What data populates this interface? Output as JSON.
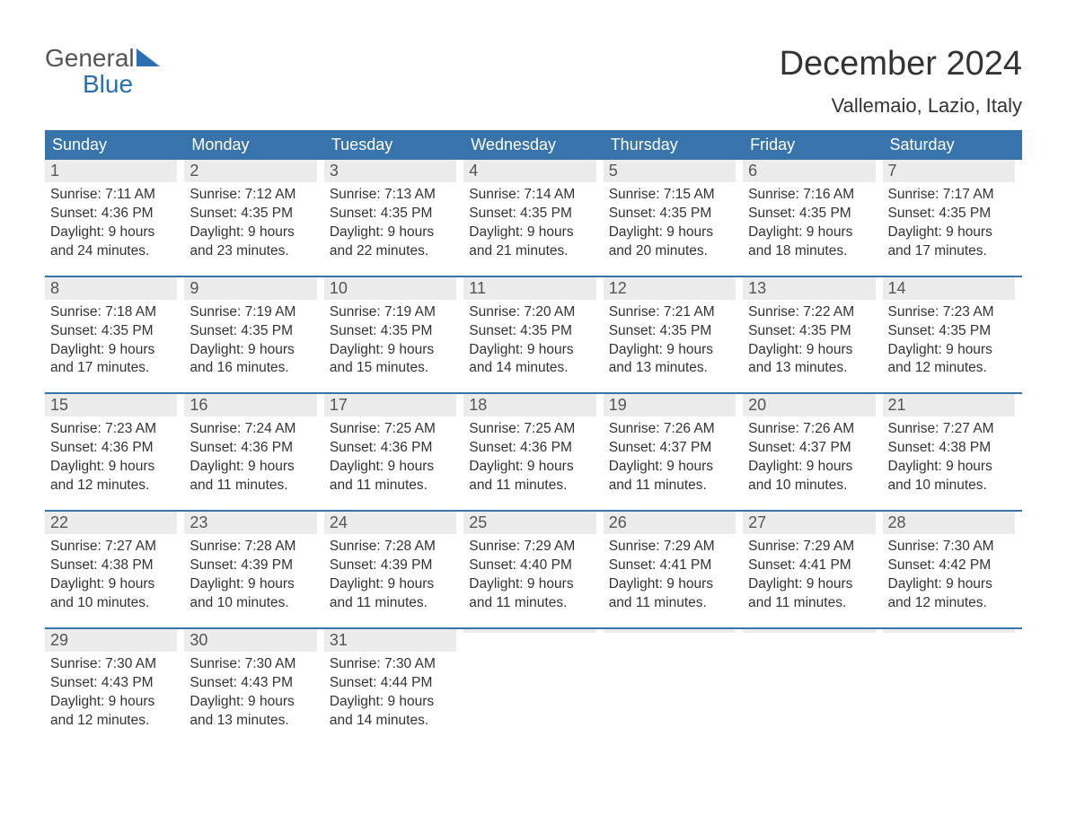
{
  "logo": {
    "top": "General",
    "bottom": "Blue"
  },
  "header": {
    "title": "December 2024",
    "subtitle": "Vallemaio, Lazio, Italy"
  },
  "colors": {
    "header_bg": "#3874ac",
    "header_text": "#ffffff",
    "day_num_bg": "#ececec",
    "border": "#3874ac",
    "logo_accent": "#2b6fb0",
    "logo_gray": "#555555"
  },
  "weekdays": [
    "Sunday",
    "Monday",
    "Tuesday",
    "Wednesday",
    "Thursday",
    "Friday",
    "Saturday"
  ],
  "weeks": [
    [
      {
        "num": "1",
        "sunrise": "Sunrise: 7:11 AM",
        "sunset": "Sunset: 4:36 PM",
        "d1": "Daylight: 9 hours",
        "d2": "and 24 minutes."
      },
      {
        "num": "2",
        "sunrise": "Sunrise: 7:12 AM",
        "sunset": "Sunset: 4:35 PM",
        "d1": "Daylight: 9 hours",
        "d2": "and 23 minutes."
      },
      {
        "num": "3",
        "sunrise": "Sunrise: 7:13 AM",
        "sunset": "Sunset: 4:35 PM",
        "d1": "Daylight: 9 hours",
        "d2": "and 22 minutes."
      },
      {
        "num": "4",
        "sunrise": "Sunrise: 7:14 AM",
        "sunset": "Sunset: 4:35 PM",
        "d1": "Daylight: 9 hours",
        "d2": "and 21 minutes."
      },
      {
        "num": "5",
        "sunrise": "Sunrise: 7:15 AM",
        "sunset": "Sunset: 4:35 PM",
        "d1": "Daylight: 9 hours",
        "d2": "and 20 minutes."
      },
      {
        "num": "6",
        "sunrise": "Sunrise: 7:16 AM",
        "sunset": "Sunset: 4:35 PM",
        "d1": "Daylight: 9 hours",
        "d2": "and 18 minutes."
      },
      {
        "num": "7",
        "sunrise": "Sunrise: 7:17 AM",
        "sunset": "Sunset: 4:35 PM",
        "d1": "Daylight: 9 hours",
        "d2": "and 17 minutes."
      }
    ],
    [
      {
        "num": "8",
        "sunrise": "Sunrise: 7:18 AM",
        "sunset": "Sunset: 4:35 PM",
        "d1": "Daylight: 9 hours",
        "d2": "and 17 minutes."
      },
      {
        "num": "9",
        "sunrise": "Sunrise: 7:19 AM",
        "sunset": "Sunset: 4:35 PM",
        "d1": "Daylight: 9 hours",
        "d2": "and 16 minutes."
      },
      {
        "num": "10",
        "sunrise": "Sunrise: 7:19 AM",
        "sunset": "Sunset: 4:35 PM",
        "d1": "Daylight: 9 hours",
        "d2": "and 15 minutes."
      },
      {
        "num": "11",
        "sunrise": "Sunrise: 7:20 AM",
        "sunset": "Sunset: 4:35 PM",
        "d1": "Daylight: 9 hours",
        "d2": "and 14 minutes."
      },
      {
        "num": "12",
        "sunrise": "Sunrise: 7:21 AM",
        "sunset": "Sunset: 4:35 PM",
        "d1": "Daylight: 9 hours",
        "d2": "and 13 minutes."
      },
      {
        "num": "13",
        "sunrise": "Sunrise: 7:22 AM",
        "sunset": "Sunset: 4:35 PM",
        "d1": "Daylight: 9 hours",
        "d2": "and 13 minutes."
      },
      {
        "num": "14",
        "sunrise": "Sunrise: 7:23 AM",
        "sunset": "Sunset: 4:35 PM",
        "d1": "Daylight: 9 hours",
        "d2": "and 12 minutes."
      }
    ],
    [
      {
        "num": "15",
        "sunrise": "Sunrise: 7:23 AM",
        "sunset": "Sunset: 4:36 PM",
        "d1": "Daylight: 9 hours",
        "d2": "and 12 minutes."
      },
      {
        "num": "16",
        "sunrise": "Sunrise: 7:24 AM",
        "sunset": "Sunset: 4:36 PM",
        "d1": "Daylight: 9 hours",
        "d2": "and 11 minutes."
      },
      {
        "num": "17",
        "sunrise": "Sunrise: 7:25 AM",
        "sunset": "Sunset: 4:36 PM",
        "d1": "Daylight: 9 hours",
        "d2": "and 11 minutes."
      },
      {
        "num": "18",
        "sunrise": "Sunrise: 7:25 AM",
        "sunset": "Sunset: 4:36 PM",
        "d1": "Daylight: 9 hours",
        "d2": "and 11 minutes."
      },
      {
        "num": "19",
        "sunrise": "Sunrise: 7:26 AM",
        "sunset": "Sunset: 4:37 PM",
        "d1": "Daylight: 9 hours",
        "d2": "and 11 minutes."
      },
      {
        "num": "20",
        "sunrise": "Sunrise: 7:26 AM",
        "sunset": "Sunset: 4:37 PM",
        "d1": "Daylight: 9 hours",
        "d2": "and 10 minutes."
      },
      {
        "num": "21",
        "sunrise": "Sunrise: 7:27 AM",
        "sunset": "Sunset: 4:38 PM",
        "d1": "Daylight: 9 hours",
        "d2": "and 10 minutes."
      }
    ],
    [
      {
        "num": "22",
        "sunrise": "Sunrise: 7:27 AM",
        "sunset": "Sunset: 4:38 PM",
        "d1": "Daylight: 9 hours",
        "d2": "and 10 minutes."
      },
      {
        "num": "23",
        "sunrise": "Sunrise: 7:28 AM",
        "sunset": "Sunset: 4:39 PM",
        "d1": "Daylight: 9 hours",
        "d2": "and 10 minutes."
      },
      {
        "num": "24",
        "sunrise": "Sunrise: 7:28 AM",
        "sunset": "Sunset: 4:39 PM",
        "d1": "Daylight: 9 hours",
        "d2": "and 11 minutes."
      },
      {
        "num": "25",
        "sunrise": "Sunrise: 7:29 AM",
        "sunset": "Sunset: 4:40 PM",
        "d1": "Daylight: 9 hours",
        "d2": "and 11 minutes."
      },
      {
        "num": "26",
        "sunrise": "Sunrise: 7:29 AM",
        "sunset": "Sunset: 4:41 PM",
        "d1": "Daylight: 9 hours",
        "d2": "and 11 minutes."
      },
      {
        "num": "27",
        "sunrise": "Sunrise: 7:29 AM",
        "sunset": "Sunset: 4:41 PM",
        "d1": "Daylight: 9 hours",
        "d2": "and 11 minutes."
      },
      {
        "num": "28",
        "sunrise": "Sunrise: 7:30 AM",
        "sunset": "Sunset: 4:42 PM",
        "d1": "Daylight: 9 hours",
        "d2": "and 12 minutes."
      }
    ],
    [
      {
        "num": "29",
        "sunrise": "Sunrise: 7:30 AM",
        "sunset": "Sunset: 4:43 PM",
        "d1": "Daylight: 9 hours",
        "d2": "and 12 minutes."
      },
      {
        "num": "30",
        "sunrise": "Sunrise: 7:30 AM",
        "sunset": "Sunset: 4:43 PM",
        "d1": "Daylight: 9 hours",
        "d2": "and 13 minutes."
      },
      {
        "num": "31",
        "sunrise": "Sunrise: 7:30 AM",
        "sunset": "Sunset: 4:44 PM",
        "d1": "Daylight: 9 hours",
        "d2": "and 14 minutes."
      },
      {
        "empty": true
      },
      {
        "empty": true
      },
      {
        "empty": true
      },
      {
        "empty": true
      }
    ]
  ]
}
